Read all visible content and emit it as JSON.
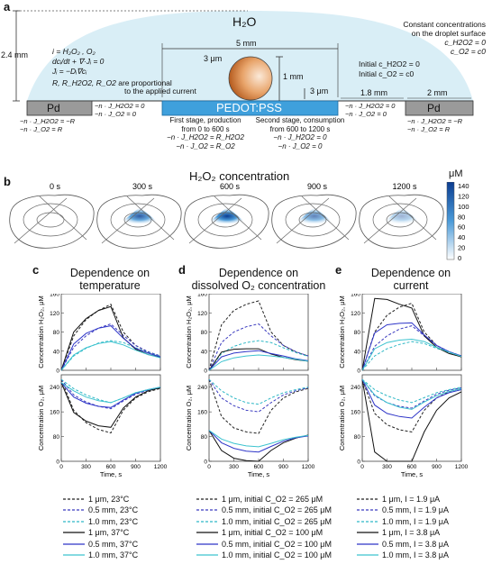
{
  "panel_labels": {
    "a": "a",
    "b": "b",
    "c": "c",
    "d": "d",
    "e": "e"
  },
  "schematic": {
    "water_label": "H₂O",
    "height_label": "2.4 mm",
    "width_label": "5 mm",
    "sphere_label": "3 μm",
    "sphere_height": "1 mm",
    "gap_label": "3 μm",
    "gap_right": "1.8 mm",
    "pd_width": "2 mm",
    "pd_left": "Pd",
    "pd_right": "Pd",
    "pedot": "PEDOT:PSS",
    "const_conc_line1": "Constant concentrations",
    "const_conc_line2": "on the droplet surface",
    "const_eq1": "c_H2O2 = 0",
    "const_eq2": "c_O2 = c0",
    "initial1": "Initial c_H2O2 = 0",
    "initial2": "Initial c_O2 = c0",
    "species": "i = H₂O₂ , O₂",
    "eq1": "dcᵢ/dt + ∇·Jᵢ = 0",
    "eq2": "Jᵢ = −Dᵢ∇cᵢ",
    "rates": "R, R_H2O2, R_O2",
    "rates_note1": "are proportional",
    "rates_note2": "to the applied current",
    "bc_pd1": "−n · J_H2O2 = −R",
    "bc_pd2": "−n · J_O2 = R",
    "bc_zero1": "−n · J_H2O2 = 0",
    "bc_zero2": "−n · J_O2 = 0",
    "stage1_l1": "First stage, production",
    "stage1_l2": "from 0 to 600 s",
    "stage1_l3": "−n · J_H2O2 = R_H2O2",
    "stage1_l4": "−n · J_O2 = R_O2",
    "stage2_l1": "Second stage, consumption",
    "stage2_l2": "from 600 to 1200 s",
    "stage2_l3": "−n · J_H2O2 = 0",
    "stage2_l4": "−n · J_O2 = 0"
  },
  "concentration_maps": {
    "title": "H₂O₂ concentration",
    "times": [
      "0 s",
      "300 s",
      "600 s",
      "900 s",
      "1200 s"
    ],
    "colorbar_unit": "μM",
    "colorbar_ticks": [
      "140",
      "120",
      "100",
      "80",
      "60",
      "40",
      "20",
      "0"
    ],
    "colors": {
      "high": "#0b3d91",
      "mid": "#4a9ad8",
      "low": "#ffffff"
    }
  },
  "panels": {
    "c": {
      "title": [
        "Dependence on",
        "temperature"
      ]
    },
    "d": {
      "title": [
        "Dependence on",
        "dissolved O₂ concentration"
      ]
    },
    "e": {
      "title": [
        "Dependence on",
        "current"
      ]
    }
  },
  "axes": {
    "top_ylabel": "Concentration H₂O₂, μM",
    "bottom_ylabel": "Concentration O₂, μM",
    "xlabel": "Time, s",
    "x_ticks": [
      "0",
      "300",
      "600",
      "900",
      "1200"
    ],
    "top_ticks": [
      "0",
      "40",
      "80",
      "120",
      "160"
    ],
    "bottom_ticks": [
      "0",
      "80",
      "160",
      "240"
    ]
  },
  "chart_data": [
    {
      "type": "line",
      "title": "Dependence on temperature",
      "xlabel": "Time, s",
      "x": [
        0,
        150,
        300,
        450,
        600,
        750,
        900,
        1050,
        1200
      ],
      "xlim": [
        0,
        1200
      ],
      "subplots": [
        {
          "ylabel": "Concentration H₂O₂, μM",
          "ylim": [
            0,
            160
          ],
          "series": [
            {
              "name": "1 μm, 23°C",
              "values": [
                0,
                72,
                106,
                125,
                138,
                80,
                52,
                38,
                30
              ]
            },
            {
              "name": "0.5 mm, 23°C",
              "values": [
                0,
                48,
                72,
                88,
                97,
                73,
                52,
                39,
                30
              ]
            },
            {
              "name": "1.0 mm, 23°C",
              "values": [
                0,
                30,
                46,
                57,
                62,
                58,
                47,
                37,
                29
              ]
            },
            {
              "name": "1 μm, 37°C",
              "values": [
                0,
                80,
                108,
                125,
                133,
                68,
                44,
                33,
                27
              ]
            },
            {
              "name": "0.5 mm, 37°C",
              "values": [
                0,
                55,
                77,
                88,
                93,
                67,
                46,
                36,
                28
              ]
            },
            {
              "name": "1.0 mm, 37°C",
              "values": [
                0,
                32,
                47,
                56,
                60,
                53,
                42,
                33,
                26
              ]
            }
          ]
        },
        {
          "ylabel": "Concentration O₂, μM",
          "ylim": [
            0,
            280
          ],
          "series": [
            {
              "name": "1 μm, 23°C",
              "values": [
                265,
                165,
                125,
                103,
                92,
                165,
                205,
                225,
                236
              ]
            },
            {
              "name": "0.5 mm, 23°C",
              "values": [
                265,
                215,
                192,
                178,
                170,
                195,
                217,
                230,
                238
              ]
            },
            {
              "name": "1.0 mm, 23°C",
              "values": [
                265,
                235,
                215,
                200,
                190,
                205,
                222,
                232,
                240
              ]
            },
            {
              "name": "1 μm, 37°C",
              "values": [
                255,
                158,
                130,
                115,
                110,
                172,
                208,
                228,
                238
              ]
            },
            {
              "name": "0.5 mm, 37°C",
              "values": [
                255,
                208,
                188,
                178,
                174,
                198,
                220,
                232,
                240
              ]
            },
            {
              "name": "1.0 mm, 37°C",
              "values": [
                255,
                228,
                208,
                196,
                190,
                205,
                222,
                232,
                240
              ]
            }
          ]
        }
      ]
    },
    {
      "type": "line",
      "title": "Dependence on dissolved O₂ concentration",
      "xlabel": "Time, s",
      "x": [
        0,
        150,
        300,
        450,
        600,
        750,
        900,
        1050,
        1200
      ],
      "xlim": [
        0,
        1200
      ],
      "subplots": [
        {
          "ylabel": "Concentration H₂O₂, μM",
          "ylim": [
            0,
            160
          ],
          "series": [
            {
              "name": "1 μm, initial C_O2 = 265 μM",
              "values": [
                0,
                95,
                125,
                138,
                145,
                80,
                52,
                38,
                30
              ]
            },
            {
              "name": "0.5 mm, initial C_O2 = 265 μM",
              "values": [
                0,
                58,
                80,
                91,
                97,
                72,
                52,
                39,
                30
              ]
            },
            {
              "name": "1.0 mm, initial C_O2 = 265 μM",
              "values": [
                0,
                35,
                50,
                58,
                62,
                58,
                47,
                37,
                29
              ]
            },
            {
              "name": "1 μm, initial C_O2 = 100 μM",
              "values": [
                0,
                38,
                44,
                45,
                45,
                34,
                27,
                22,
                19
              ]
            },
            {
              "name": "0.5 mm, initial C_O2 = 100 μM",
              "values": [
                0,
                28,
                36,
                39,
                41,
                35,
                30,
                24,
                20
              ]
            },
            {
              "name": "1.0 mm, initial C_O2 = 100 μM",
              "values": [
                0,
                18,
                26,
                30,
                32,
                30,
                27,
                23,
                19
              ]
            }
          ]
        },
        {
          "ylabel": "Concentration O₂, μM",
          "ylim": [
            0,
            280
          ],
          "series": [
            {
              "name": "1 μm, initial C_O2 = 265 μM",
              "values": [
                265,
                145,
                108,
                95,
                90,
                165,
                205,
                225,
                236
              ]
            },
            {
              "name": "0.5 mm, initial C_O2 = 265 μM",
              "values": [
                265,
                205,
                180,
                165,
                160,
                190,
                215,
                228,
                238
              ]
            },
            {
              "name": "1.0 mm, initial C_O2 = 265 μM",
              "values": [
                265,
                228,
                205,
                190,
                185,
                205,
                222,
                232,
                240
              ]
            },
            {
              "name": "1 μm, initial C_O2 = 100 μM",
              "values": [
                100,
                35,
                10,
                2,
                0,
                35,
                60,
                75,
                85
              ]
            },
            {
              "name": "0.5 mm, initial C_O2 = 100 μM",
              "values": [
                100,
                60,
                42,
                33,
                30,
                48,
                65,
                76,
                82
              ]
            },
            {
              "name": "1.0 mm, initial C_O2 = 100 μM",
              "values": [
                100,
                72,
                58,
                50,
                47,
                58,
                70,
                78,
                84
              ]
            }
          ]
        }
      ]
    },
    {
      "type": "line",
      "title": "Dependence on current",
      "xlabel": "Time, s",
      "x": [
        0,
        150,
        300,
        450,
        600,
        750,
        900,
        1050,
        1200
      ],
      "xlim": [
        0,
        1200
      ],
      "subplots": [
        {
          "ylabel": "Concentration H₂O₂, μM",
          "ylim": [
            0,
            160
          ],
          "series": [
            {
              "name": "1 μm, I = 1.9 μA",
              "values": [
                0,
                80,
                115,
                132,
                140,
                80,
                52,
                38,
                30
              ]
            },
            {
              "name": "0.5 mm, I = 1.9 μA",
              "values": [
                0,
                50,
                72,
                86,
                93,
                72,
                52,
                39,
                30
              ]
            },
            {
              "name": "1.0 mm, I = 1.9 μA",
              "values": [
                0,
                30,
                45,
                54,
                60,
                56,
                46,
                37,
                29
              ]
            },
            {
              "name": "1 μm, I = 3.8 μA",
              "values": [
                0,
                150,
                148,
                138,
                130,
                72,
                48,
                35,
                28
              ]
            },
            {
              "name": "0.5 mm, I = 3.8 μA",
              "values": [
                0,
                78,
                95,
                98,
                99,
                74,
                52,
                39,
                30
              ]
            },
            {
              "name": "1.0 mm, I = 3.8 μA",
              "values": [
                0,
                45,
                58,
                63,
                65,
                60,
                48,
                38,
                29
              ]
            }
          ]
        },
        {
          "ylabel": "Concentration O₂, μM",
          "ylim": [
            0,
            280
          ],
          "series": [
            {
              "name": "1 μm, I = 1.9 μA",
              "values": [
                265,
                155,
                118,
                102,
                95,
                165,
                205,
                225,
                236
              ]
            },
            {
              "name": "0.5 mm, I = 1.9 μA",
              "values": [
                265,
                212,
                190,
                178,
                172,
                195,
                217,
                230,
                238
              ]
            },
            {
              "name": "1.0 mm, I = 1.9 μA",
              "values": [
                265,
                232,
                212,
                198,
                190,
                206,
                222,
                232,
                240
              ]
            },
            {
              "name": "1 μm, I = 3.8 μA",
              "values": [
                265,
                30,
                0,
                0,
                0,
                95,
                165,
                205,
                225
              ]
            },
            {
              "name": "0.5 mm, I = 3.8 μA",
              "values": [
                265,
                182,
                155,
                145,
                140,
                175,
                205,
                222,
                232
              ]
            },
            {
              "name": "1.0 mm, I = 3.8 μA",
              "values": [
                265,
                215,
                190,
                175,
                168,
                192,
                212,
                226,
                235
              ]
            }
          ]
        }
      ]
    }
  ],
  "series_styles": [
    {
      "color": "#222222",
      "dash": "3,2"
    },
    {
      "color": "#3b3bbf",
      "dash": "3,2"
    },
    {
      "color": "#2fb8c6",
      "dash": "3,2"
    },
    {
      "color": "#111111",
      "dash": ""
    },
    {
      "color": "#2e35c8",
      "dash": ""
    },
    {
      "color": "#3cc3cf",
      "dash": ""
    }
  ]
}
